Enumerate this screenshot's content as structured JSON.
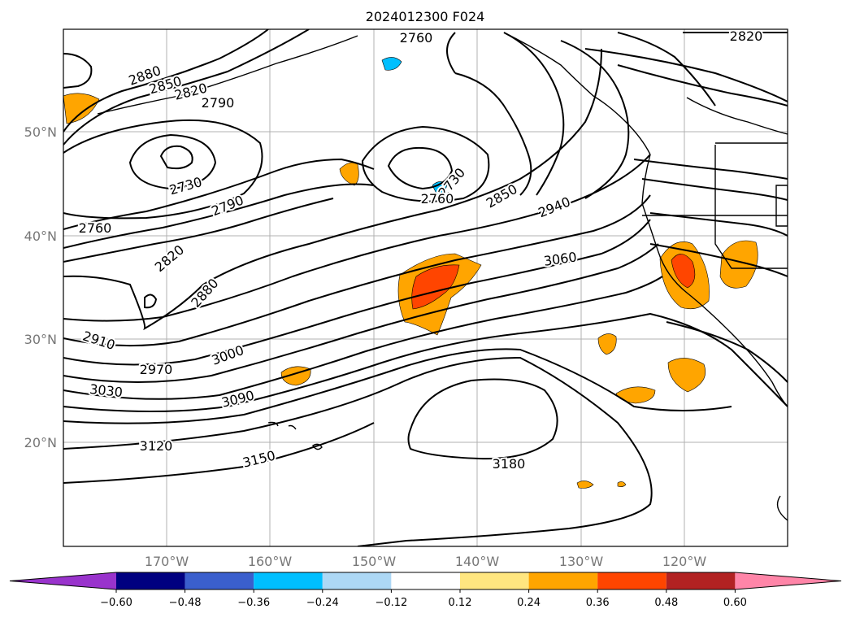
{
  "title": "2024012300 F024",
  "lat_labels": [
    "50°N",
    "40°N",
    "30°N",
    "20°N"
  ],
  "lon_labels": [
    "170°W",
    "160°W",
    "150°W",
    "140°W",
    "130°W",
    "120°W"
  ],
  "colorbar": {
    "ticks": [
      "−0.60",
      "−0.48",
      "−0.36",
      "−0.24",
      "−0.12",
      "0.12",
      "0.24",
      "0.36",
      "0.48",
      "0.60"
    ],
    "colors": [
      "#9933cc",
      "#000080",
      "#3a5fcd",
      "#00bfff",
      "#add8f5",
      "#ffffff",
      "#ffe680",
      "#ffa500",
      "#ff4500",
      "#b22222",
      "#ff85a8"
    ]
  },
  "contour_labels": [
    "2760",
    "2820",
    "2880",
    "2850",
    "2820",
    "2790",
    "2730",
    "2790",
    "2760",
    "2730",
    "2760",
    "2850",
    "2940",
    "2820",
    "2880",
    "3060",
    "2910",
    "2970",
    "3000",
    "3030",
    "3090",
    "3120",
    "3150",
    "3180"
  ]
}
